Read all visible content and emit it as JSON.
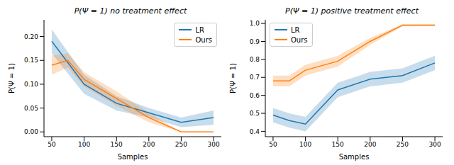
{
  "chart_data": [
    {
      "type": "line",
      "title": "P(Ψ = 1) no treatment effect",
      "x_label": "Samples",
      "y_label": "P(Ψ = 1)",
      "xlim": [
        38,
        312
      ],
      "ylim": [
        -0.01,
        0.235
      ],
      "xticks": [
        50,
        100,
        150,
        200,
        250,
        300
      ],
      "yticks": [
        {
          "value": 0,
          "label": "0.00"
        },
        {
          "value": 0.05,
          "label": "0.05"
        },
        {
          "value": 0.1,
          "label": "0.10"
        },
        {
          "value": 0.15,
          "label": "0.15"
        },
        {
          "value": 0.2,
          "label": "0.20"
        }
      ],
      "grid": false,
      "legend": "upper right",
      "series": [
        {
          "name": "LR",
          "color": "#1f77b4",
          "x": [
            50,
            100,
            150,
            200,
            250,
            300
          ],
          "values": [
            0.19,
            0.1,
            0.06,
            0.04,
            0.02,
            0.03
          ],
          "lower": [
            0.165,
            0.08,
            0.045,
            0.03,
            0.01,
            0.015
          ],
          "upper": [
            0.215,
            0.12,
            0.075,
            0.05,
            0.03,
            0.045
          ]
        },
        {
          "name": "Ours",
          "color": "#ff7f0e",
          "x": [
            50,
            75,
            100,
            150,
            200,
            250,
            300
          ],
          "values": [
            0.14,
            0.15,
            0.11,
            0.07,
            0.03,
            0.0,
            0.0
          ],
          "lower": [
            0.12,
            0.135,
            0.095,
            0.055,
            0.02,
            0.0,
            0.0
          ],
          "upper": [
            0.16,
            0.165,
            0.125,
            0.085,
            0.04,
            0.0,
            0.0
          ]
        }
      ]
    },
    {
      "type": "line",
      "title": "P(Ψ = 1) positive treatment effect",
      "x_label": "Samples",
      "y_label": "P(Ψ = 1)",
      "xlim": [
        38,
        312
      ],
      "ylim": [
        0.37,
        1.02
      ],
      "xticks": [
        50,
        100,
        150,
        200,
        250,
        300
      ],
      "yticks": [
        {
          "value": 0.4,
          "label": "0.4"
        },
        {
          "value": 0.5,
          "label": "0.5"
        },
        {
          "value": 0.6,
          "label": "0.6"
        },
        {
          "value": 0.7,
          "label": "0.7"
        },
        {
          "value": 0.8,
          "label": "0.8"
        },
        {
          "value": 0.9,
          "label": "0.9"
        },
        {
          "value": 1.0,
          "label": "1.0"
        }
      ],
      "grid": false,
      "legend": "upper left",
      "series": [
        {
          "name": "LR",
          "color": "#1f77b4",
          "x": [
            50,
            75,
            100,
            150,
            200,
            250,
            300
          ],
          "values": [
            0.49,
            0.46,
            0.44,
            0.63,
            0.69,
            0.71,
            0.78
          ],
          "lower": [
            0.45,
            0.42,
            0.4,
            0.59,
            0.65,
            0.67,
            0.74
          ],
          "upper": [
            0.53,
            0.5,
            0.48,
            0.67,
            0.73,
            0.75,
            0.82
          ]
        },
        {
          "name": "Ours",
          "color": "#ff7f0e",
          "x": [
            50,
            75,
            100,
            150,
            200,
            250,
            300
          ],
          "values": [
            0.68,
            0.68,
            0.74,
            0.79,
            0.9,
            0.99,
            0.99
          ],
          "lower": [
            0.65,
            0.65,
            0.71,
            0.76,
            0.88,
            0.985,
            0.985
          ],
          "upper": [
            0.71,
            0.71,
            0.77,
            0.82,
            0.92,
            0.995,
            0.995
          ]
        }
      ]
    }
  ]
}
